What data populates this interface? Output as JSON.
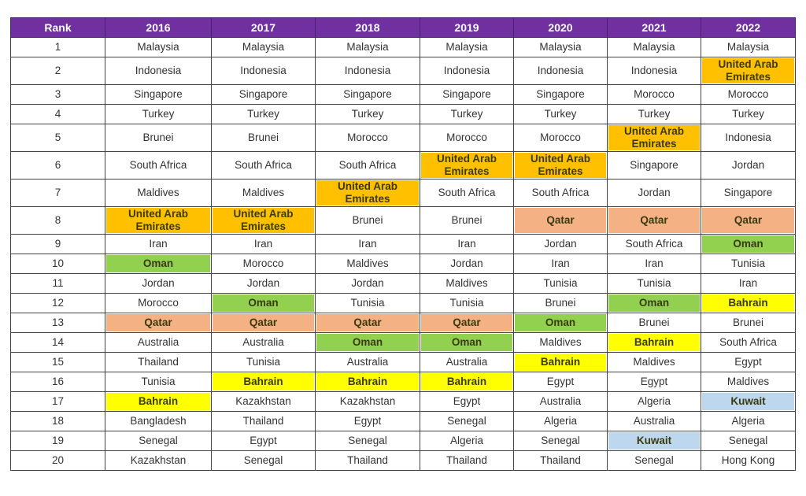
{
  "headers": [
    "Rank",
    "2016",
    "2017",
    "2018",
    "2019",
    "2020",
    "2021",
    "2022"
  ],
  "highlight_colors": {
    "United Arab Emirates": "#ffc000",
    "Qatar": "#f4b183",
    "Oman": "#92d050",
    "Bahrain": "#ffff00",
    "Kuwait": "#bdd7ee"
  },
  "rows": [
    {
      "rank": "1",
      "cells": [
        "Malaysia",
        "Malaysia",
        "Malaysia",
        "Malaysia",
        "Malaysia",
        "Malaysia",
        "Malaysia"
      ]
    },
    {
      "rank": "2",
      "cells": [
        "Indonesia",
        "Indonesia",
        "Indonesia",
        "Indonesia",
        "Indonesia",
        "Indonesia",
        "United Arab Emirates"
      ]
    },
    {
      "rank": "3",
      "cells": [
        "Singapore",
        "Singapore",
        "Singapore",
        "Singapore",
        "Singapore",
        "Morocco",
        "Morocco"
      ]
    },
    {
      "rank": "4",
      "cells": [
        "Turkey",
        "Turkey",
        "Turkey",
        "Turkey",
        "Turkey",
        "Turkey",
        "Turkey"
      ]
    },
    {
      "rank": "5",
      "cells": [
        "Brunei",
        "Brunei",
        "Morocco",
        "Morocco",
        "Morocco",
        "United Arab Emirates",
        "Indonesia"
      ]
    },
    {
      "rank": "6",
      "cells": [
        "South Africa",
        "South Africa",
        "South Africa",
        "United Arab Emirates",
        "United Arab Emirates",
        "Singapore",
        "Jordan"
      ]
    },
    {
      "rank": "7",
      "cells": [
        "Maldives",
        "Maldives",
        "United Arab Emirates",
        "South Africa",
        "South Africa",
        "Jordan",
        "Singapore"
      ]
    },
    {
      "rank": "8",
      "cells": [
        "United Arab Emirates",
        "United Arab Emirates",
        "Brunei",
        "Brunei",
        "Qatar",
        "Qatar",
        "Qatar"
      ]
    },
    {
      "rank": "9",
      "cells": [
        "Iran",
        "Iran",
        "Iran",
        "Iran",
        "Jordan",
        "South Africa",
        "Oman"
      ]
    },
    {
      "rank": "10",
      "cells": [
        "Oman",
        "Morocco",
        "Maldives",
        "Jordan",
        "Iran",
        "Iran",
        "Tunisia"
      ]
    },
    {
      "rank": "11",
      "cells": [
        "Jordan",
        "Jordan",
        "Jordan",
        "Maldives",
        "Tunisia",
        "Tunisia",
        "Iran"
      ]
    },
    {
      "rank": "12",
      "cells": [
        "Morocco",
        "Oman",
        "Tunisia",
        "Tunisia",
        "Brunei",
        "Oman",
        "Bahrain"
      ]
    },
    {
      "rank": "13",
      "cells": [
        "Qatar",
        "Qatar",
        "Qatar",
        "Qatar",
        "Oman",
        "Brunei",
        "Brunei"
      ]
    },
    {
      "rank": "14",
      "cells": [
        "Australia",
        "Australia",
        "Oman",
        "Oman",
        "Maldives",
        "Bahrain",
        "South Africa"
      ]
    },
    {
      "rank": "15",
      "cells": [
        "Thailand",
        "Tunisia",
        "Australia",
        "Australia",
        "Bahrain",
        "Maldives",
        "Egypt"
      ]
    },
    {
      "rank": "16",
      "cells": [
        "Tunisia",
        "Bahrain",
        "Bahrain",
        "Bahrain",
        "Egypt",
        "Egypt",
        "Maldives"
      ]
    },
    {
      "rank": "17",
      "cells": [
        "Bahrain",
        "Kazakhstan",
        "Kazakhstan",
        "Egypt",
        "Australia",
        "Algeria",
        "Kuwait"
      ]
    },
    {
      "rank": "18",
      "cells": [
        "Bangladesh",
        "Thailand",
        "Egypt",
        "Senegal",
        "Algeria",
        "Australia",
        "Algeria"
      ]
    },
    {
      "rank": "19",
      "cells": [
        "Senegal",
        "Egypt",
        "Senegal",
        "Algeria",
        "Senegal",
        "Kuwait",
        "Senegal"
      ]
    },
    {
      "rank": "20",
      "cells": [
        "Kazakhstan",
        "Senegal",
        "Thailand",
        "Thailand",
        "Thailand",
        "Senegal",
        "Hong Kong"
      ]
    }
  ]
}
